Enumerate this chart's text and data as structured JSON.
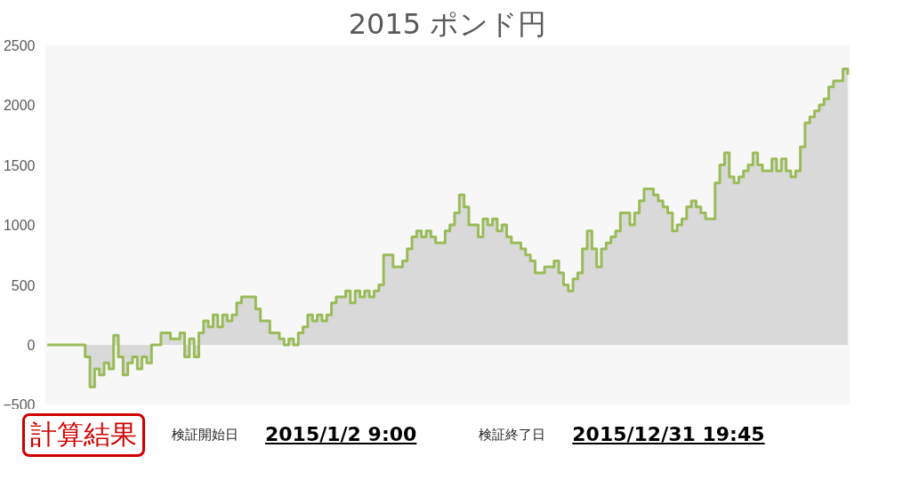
{
  "chart_data": {
    "type": "step",
    "title": "2015 ポンド円",
    "categories": [
      null,
      null,
      null,
      null,
      null,
      null,
      null,
      null,
      null,
      null,
      null,
      null,
      null,
      null,
      null,
      null,
      null,
      null,
      null,
      null,
      null,
      null,
      null,
      null,
      null,
      null,
      null,
      null,
      null,
      null,
      null,
      null,
      null,
      null,
      null,
      null,
      null,
      null,
      null,
      null,
      null,
      null,
      null,
      null,
      null,
      null,
      null,
      null,
      null,
      null,
      null,
      null,
      null,
      null,
      null,
      null,
      null,
      null,
      null,
      null,
      null,
      null,
      null,
      null,
      null,
      null,
      null,
      null,
      null,
      null,
      null,
      null,
      null,
      null,
      null,
      null,
      null,
      null,
      null,
      null,
      null,
      null,
      null,
      null,
      null,
      null,
      null,
      null,
      null,
      null,
      null,
      null,
      null,
      null,
      null,
      null,
      null,
      null,
      null,
      null,
      null,
      null,
      null,
      null,
      null,
      null,
      null,
      null,
      null,
      null,
      null,
      null,
      null,
      null,
      null,
      null,
      null,
      null,
      null,
      null,
      null,
      null,
      null,
      null,
      null,
      null,
      null,
      null,
      null,
      null,
      null,
      null,
      null,
      null,
      null,
      null,
      null,
      null,
      null,
      null,
      null,
      null,
      null,
      null,
      null,
      null,
      null,
      null,
      null,
      null,
      null,
      null,
      null,
      null,
      null,
      null,
      null,
      null,
      null,
      null,
      null,
      null,
      null,
      null,
      null,
      null,
      null,
      null,
      null,
      null
    ],
    "series": [
      {
        "color": "#9bbb59",
        "values": [
          0,
          0,
          0,
          0,
          0,
          0,
          0,
          0,
          -100,
          -350,
          -200,
          -250,
          -150,
          -200,
          80,
          -100,
          -250,
          -150,
          -100,
          -200,
          -100,
          -150,
          0,
          0,
          100,
          100,
          50,
          50,
          100,
          -100,
          50,
          -100,
          100,
          200,
          150,
          250,
          150,
          250,
          200,
          250,
          350,
          400,
          400,
          400,
          300,
          200,
          200,
          100,
          100,
          50,
          0,
          50,
          0,
          100,
          150,
          250,
          200,
          250,
          200,
          250,
          350,
          400,
          400,
          450,
          350,
          450,
          400,
          450,
          400,
          450,
          500,
          750,
          750,
          650,
          650,
          700,
          800,
          900,
          950,
          900,
          950,
          900,
          850,
          850,
          950,
          1000,
          1100,
          1250,
          1150,
          1000,
          1000,
          900,
          1050,
          1000,
          1050,
          950,
          1000,
          900,
          850,
          850,
          800,
          750,
          700,
          600,
          600,
          650,
          650,
          700,
          600,
          500,
          450,
          550,
          600,
          800,
          950,
          800,
          650,
          800,
          850,
          900,
          950,
          1100,
          1100,
          1000,
          1100,
          1200,
          1300,
          1300,
          1250,
          1200,
          1150,
          1100,
          950,
          1000,
          1050,
          1150,
          1200,
          1150,
          1100,
          1050,
          1050,
          1350,
          1500,
          1600,
          1400,
          1350,
          1400,
          1450,
          1500,
          1600,
          1500,
          1450,
          1450,
          1550,
          1450,
          1550,
          1450,
          1400,
          1450,
          1650,
          1850,
          1900,
          1950,
          2000,
          2050,
          2150,
          2200,
          2200,
          2300,
          2250
        ]
      }
    ],
    "ylim": [
      -500,
      2500
    ],
    "yticks": [
      -500,
      0,
      500,
      1000,
      1500,
      2000,
      2500
    ],
    "tick_labels": "y",
    "grid": false,
    "annotations": [
      "計算結果",
      "検証開始日",
      "2015/1/2 9:00",
      "検証終了日",
      "2015/12/31 19:45"
    ]
  }
}
